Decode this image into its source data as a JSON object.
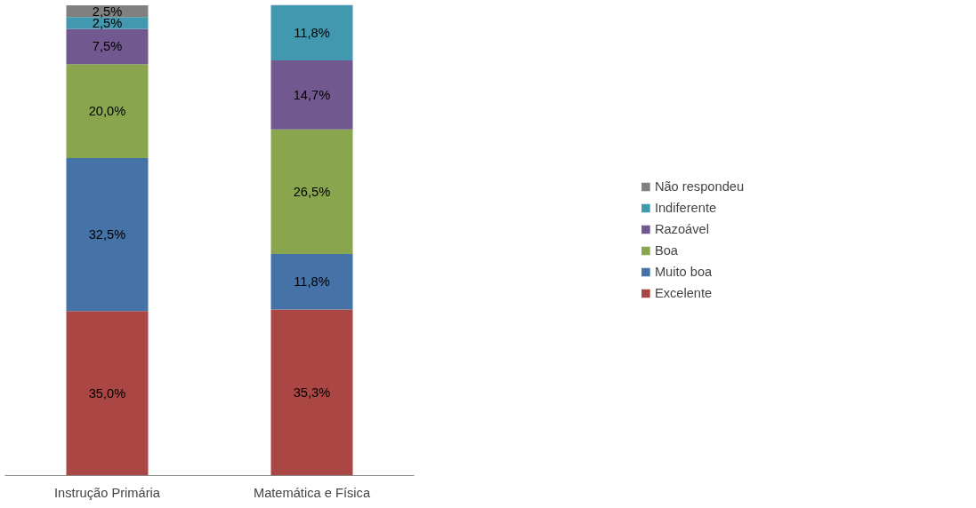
{
  "chart_data": {
    "type": "bar",
    "stacked": true,
    "categories": [
      "Instrução Primária",
      "Matemática e Física"
    ],
    "series": [
      {
        "name": "Excelente",
        "color": "#aa4744",
        "values": [
          35.0,
          35.3
        ],
        "value_labels": [
          "35,0%",
          "35,3%"
        ]
      },
      {
        "name": "Muito boa",
        "color": "#4572a7",
        "values": [
          32.5,
          11.8
        ],
        "value_labels": [
          "32,5%",
          "11,8%"
        ]
      },
      {
        "name": "Boa",
        "color": "#89a54e",
        "values": [
          20.0,
          26.5
        ],
        "value_labels": [
          "20,0%",
          "26,5%"
        ]
      },
      {
        "name": "Razoável",
        "color": "#71588f",
        "values": [
          7.5,
          14.7
        ],
        "value_labels": [
          "7,5%",
          "14,7%"
        ]
      },
      {
        "name": "Indiferente",
        "color": "#4198af",
        "values": [
          2.5,
          11.8
        ],
        "value_labels": [
          "2,5%",
          "11,8%"
        ]
      },
      {
        "name": "Não respondeu",
        "color": "#808080",
        "values": [
          2.5,
          null
        ],
        "value_labels": [
          "2,5%",
          null
        ]
      }
    ],
    "legend": "right",
    "grid": false
  }
}
